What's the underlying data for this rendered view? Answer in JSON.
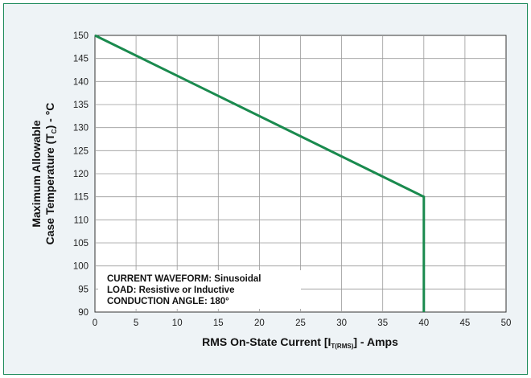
{
  "chart_data": {
    "type": "line",
    "xlabel": {
      "main": "RMS On-State Current [I",
      "sub": "T(RMS)",
      "tail": "] - Amps"
    },
    "ylabel": {
      "line1": "Maximum Allowable",
      "line2_main": "Case Temperature (T",
      "line2_sub": "C",
      "line2_tail": ") - °C"
    },
    "xlim": [
      0,
      50
    ],
    "ylim": [
      90,
      150
    ],
    "xticks": [
      0,
      5,
      10,
      15,
      20,
      25,
      30,
      35,
      40,
      45,
      50
    ],
    "yticks": [
      90,
      95,
      100,
      105,
      110,
      115,
      120,
      125,
      130,
      135,
      140,
      145,
      150
    ],
    "grid": true,
    "series": [
      {
        "color": "#1a8a4e",
        "x": [
          0,
          40,
          40
        ],
        "y": [
          150,
          115,
          90
        ]
      }
    ],
    "annotations": [
      "CURRENT WAVEFORM: Sinusoidal",
      "LOAD: Resistive or Inductive",
      "CONDUCTION ANGLE: 180°"
    ]
  }
}
